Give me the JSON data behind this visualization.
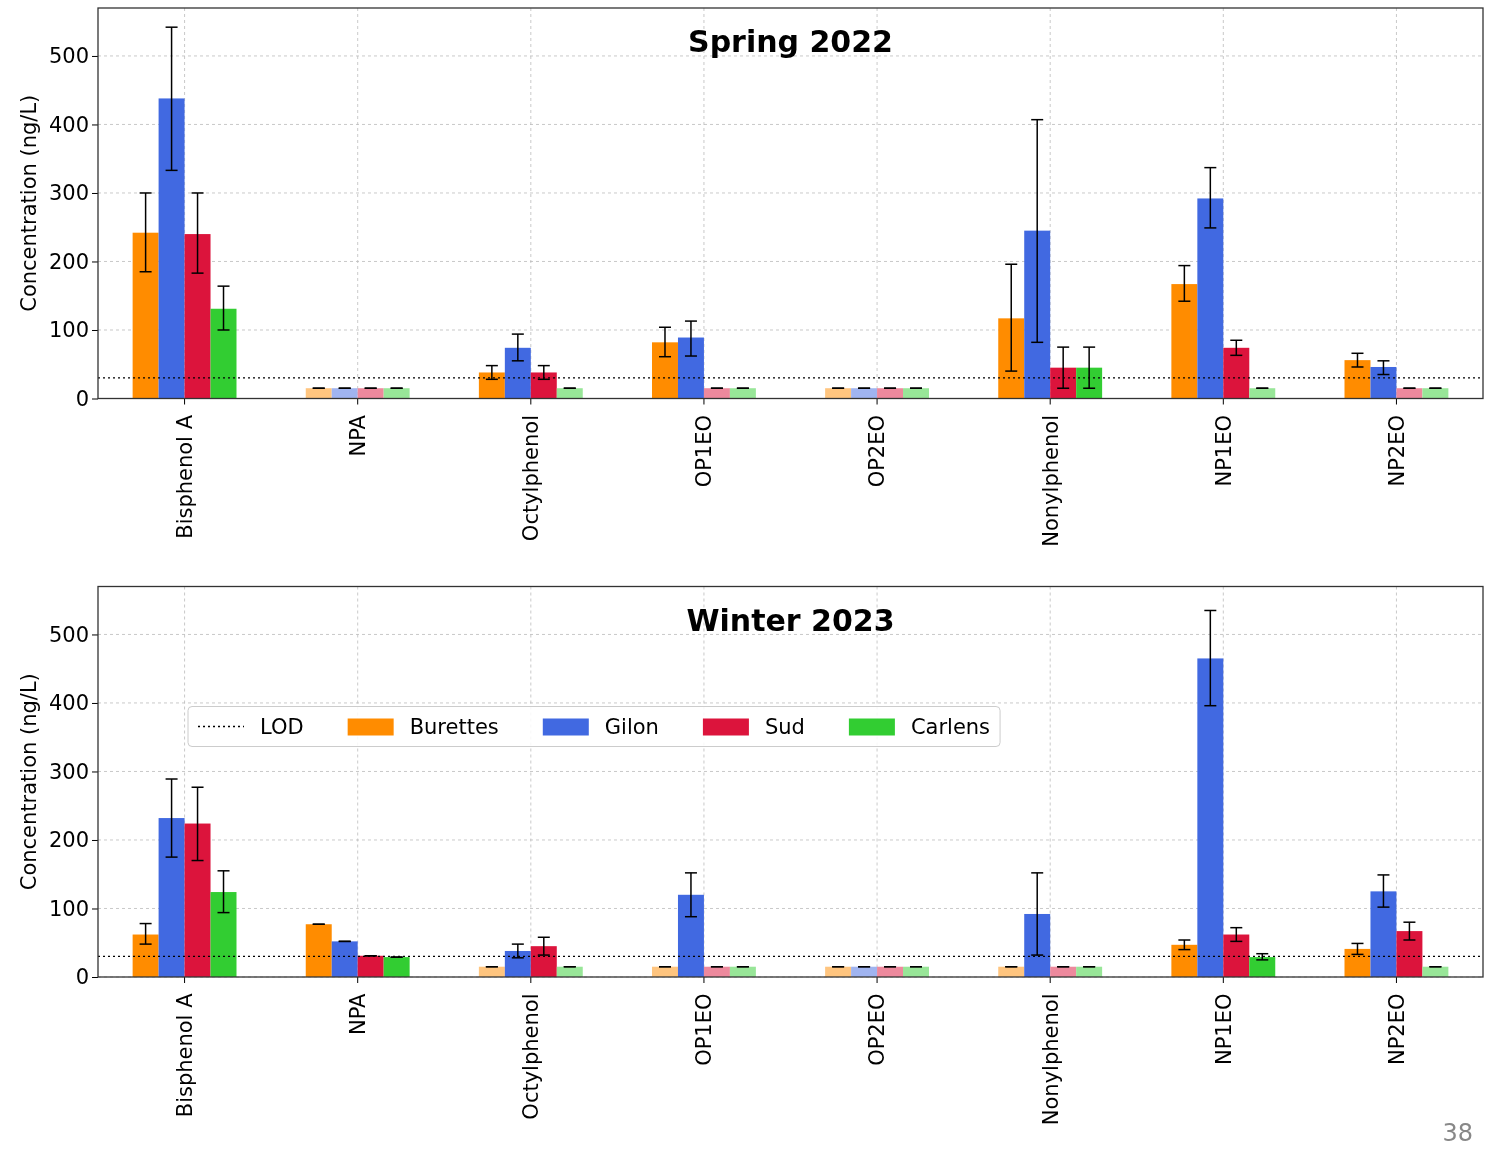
{
  "chart_data": [
    {
      "type": "bar",
      "title": "Spring 2022",
      "ylabel": "Concentration (ng/L)",
      "categories": [
        "Bisphenol A",
        "NPA",
        "Octylphenol",
        "OP1EO",
        "OP2EO",
        "Nonylphenol",
        "NP1EO",
        "NP2EO"
      ],
      "ylim": [
        0,
        570
      ],
      "yticks": [
        0,
        100,
        200,
        300,
        400,
        500
      ],
      "grid": true,
      "legend": false,
      "ref_lines": [
        {
          "axis": "y",
          "value": 30,
          "line_style": "dotted",
          "color": "#000000"
        }
      ],
      "series": [
        {
          "colors": [
            "#ff8c00",
            "#ffc57f",
            "#ff8c00",
            "#ff8c00",
            "#ffc57f",
            "#ff8c00",
            "#ff8c00",
            "#ff8c00"
          ],
          "values": [
            242,
            15,
            38,
            82,
            15,
            117,
            167,
            56
          ],
          "errors": [
            [
              185,
              300
            ],
            0,
            [
              28,
              48
            ],
            [
              61,
              104
            ],
            0,
            [
              40,
              196
            ],
            [
              142,
              194
            ],
            [
              46,
              66
            ]
          ]
        },
        {
          "colors": [
            "#4169e1",
            "#a0b4f0",
            "#4169e1",
            "#4169e1",
            "#a0b4f0",
            "#4169e1",
            "#4169e1",
            "#4169e1"
          ],
          "values": [
            438,
            15,
            74,
            89,
            15,
            245,
            292,
            46
          ],
          "errors": [
            [
              333,
              542
            ],
            0,
            [
              55,
              94
            ],
            [
              62,
              113
            ],
            0,
            [
              82,
              407
            ],
            [
              249,
              337
            ],
            [
              35,
              55
            ]
          ]
        },
        {
          "colors": [
            "#dc143c",
            "#ed899d",
            "#dc143c",
            "#ed899d",
            "#ed899d",
            "#dc143c",
            "#dc143c",
            "#ed899d"
          ],
          "values": [
            240,
            15,
            38,
            15,
            15,
            45,
            74,
            15
          ],
          "errors": [
            [
              183,
              300
            ],
            0,
            [
              28,
              48
            ],
            0,
            0,
            [
              15,
              75
            ],
            [
              63,
              85
            ],
            0
          ]
        },
        {
          "colors": [
            "#32cd32",
            "#98e698",
            "#98e698",
            "#98e698",
            "#98e698",
            "#32cd32",
            "#98e698",
            "#98e698"
          ],
          "values": [
            131,
            15,
            15,
            15,
            15,
            45,
            15,
            15
          ],
          "errors": [
            [
              100,
              164
            ],
            0,
            0,
            0,
            0,
            [
              15,
              75
            ],
            0,
            0
          ]
        }
      ]
    },
    {
      "type": "bar",
      "title": "Winter 2023",
      "ylabel": "Concentration (ng/L)",
      "categories": [
        "Bisphenol A",
        "NPA",
        "Octylphenol",
        "OP1EO",
        "OP2EO",
        "Nonylphenol",
        "NP1EO",
        "NP2EO"
      ],
      "ylim": [
        0,
        570
      ],
      "yticks": [
        0,
        100,
        200,
        300,
        400,
        500
      ],
      "grid": true,
      "legend": "top left",
      "ref_lines": [
        {
          "axis": "y",
          "value": 30,
          "label": "LOD",
          "line_style": "dotted",
          "color": "#000000"
        }
      ],
      "annotations": [
        "38"
      ],
      "series": [
        {
          "name": "Burettes",
          "color": "#ff8c00",
          "colors": [
            "#ff8c00",
            "#ff8c00",
            "#ffc57f",
            "#ffc57f",
            "#ffc57f",
            "#ffc57f",
            "#ff8c00",
            "#ff8c00"
          ],
          "values": [
            62,
            77,
            15,
            15,
            15,
            15,
            47,
            41
          ],
          "errors": [
            [
              48,
              78
            ],
            0,
            0,
            0,
            0,
            0,
            [
              40,
              54
            ],
            [
              33,
              49
            ]
          ]
        },
        {
          "name": "Gilon",
          "color": "#4169e1",
          "colors": [
            "#4169e1",
            "#4169e1",
            "#4169e1",
            "#4169e1",
            "#a0b4f0",
            "#4169e1",
            "#4169e1",
            "#4169e1"
          ],
          "values": [
            232,
            52,
            38,
            120,
            15,
            92,
            465,
            125
          ],
          "errors": [
            [
              175,
              289
            ],
            0,
            [
              28,
              48
            ],
            [
              88,
              152
            ],
            0,
            [
              32,
              152
            ],
            [
              396,
              535
            ],
            [
              102,
              149
            ]
          ]
        },
        {
          "name": "Sud",
          "color": "#dc143c",
          "colors": [
            "#dc143c",
            "#dc143c",
            "#dc143c",
            "#ed899d",
            "#ed899d",
            "#ed899d",
            "#dc143c",
            "#dc143c"
          ],
          "values": [
            224,
            31,
            45,
            15,
            15,
            15,
            62,
            67
          ],
          "errors": [
            [
              170,
              277
            ],
            0,
            [
              32,
              58
            ],
            0,
            0,
            0,
            [
              52,
              72
            ],
            [
              54,
              80
            ]
          ]
        },
        {
          "name": "Carlens",
          "color": "#32cd32",
          "colors": [
            "#32cd32",
            "#32cd32",
            "#98e698",
            "#98e698",
            "#98e698",
            "#98e698",
            "#32cd32",
            "#98e698"
          ],
          "values": [
            124,
            29,
            15,
            15,
            15,
            15,
            29,
            15
          ],
          "errors": [
            [
              94,
              155
            ],
            0,
            0,
            0,
            0,
            0,
            [
              25,
              34
            ],
            0
          ]
        }
      ]
    }
  ]
}
